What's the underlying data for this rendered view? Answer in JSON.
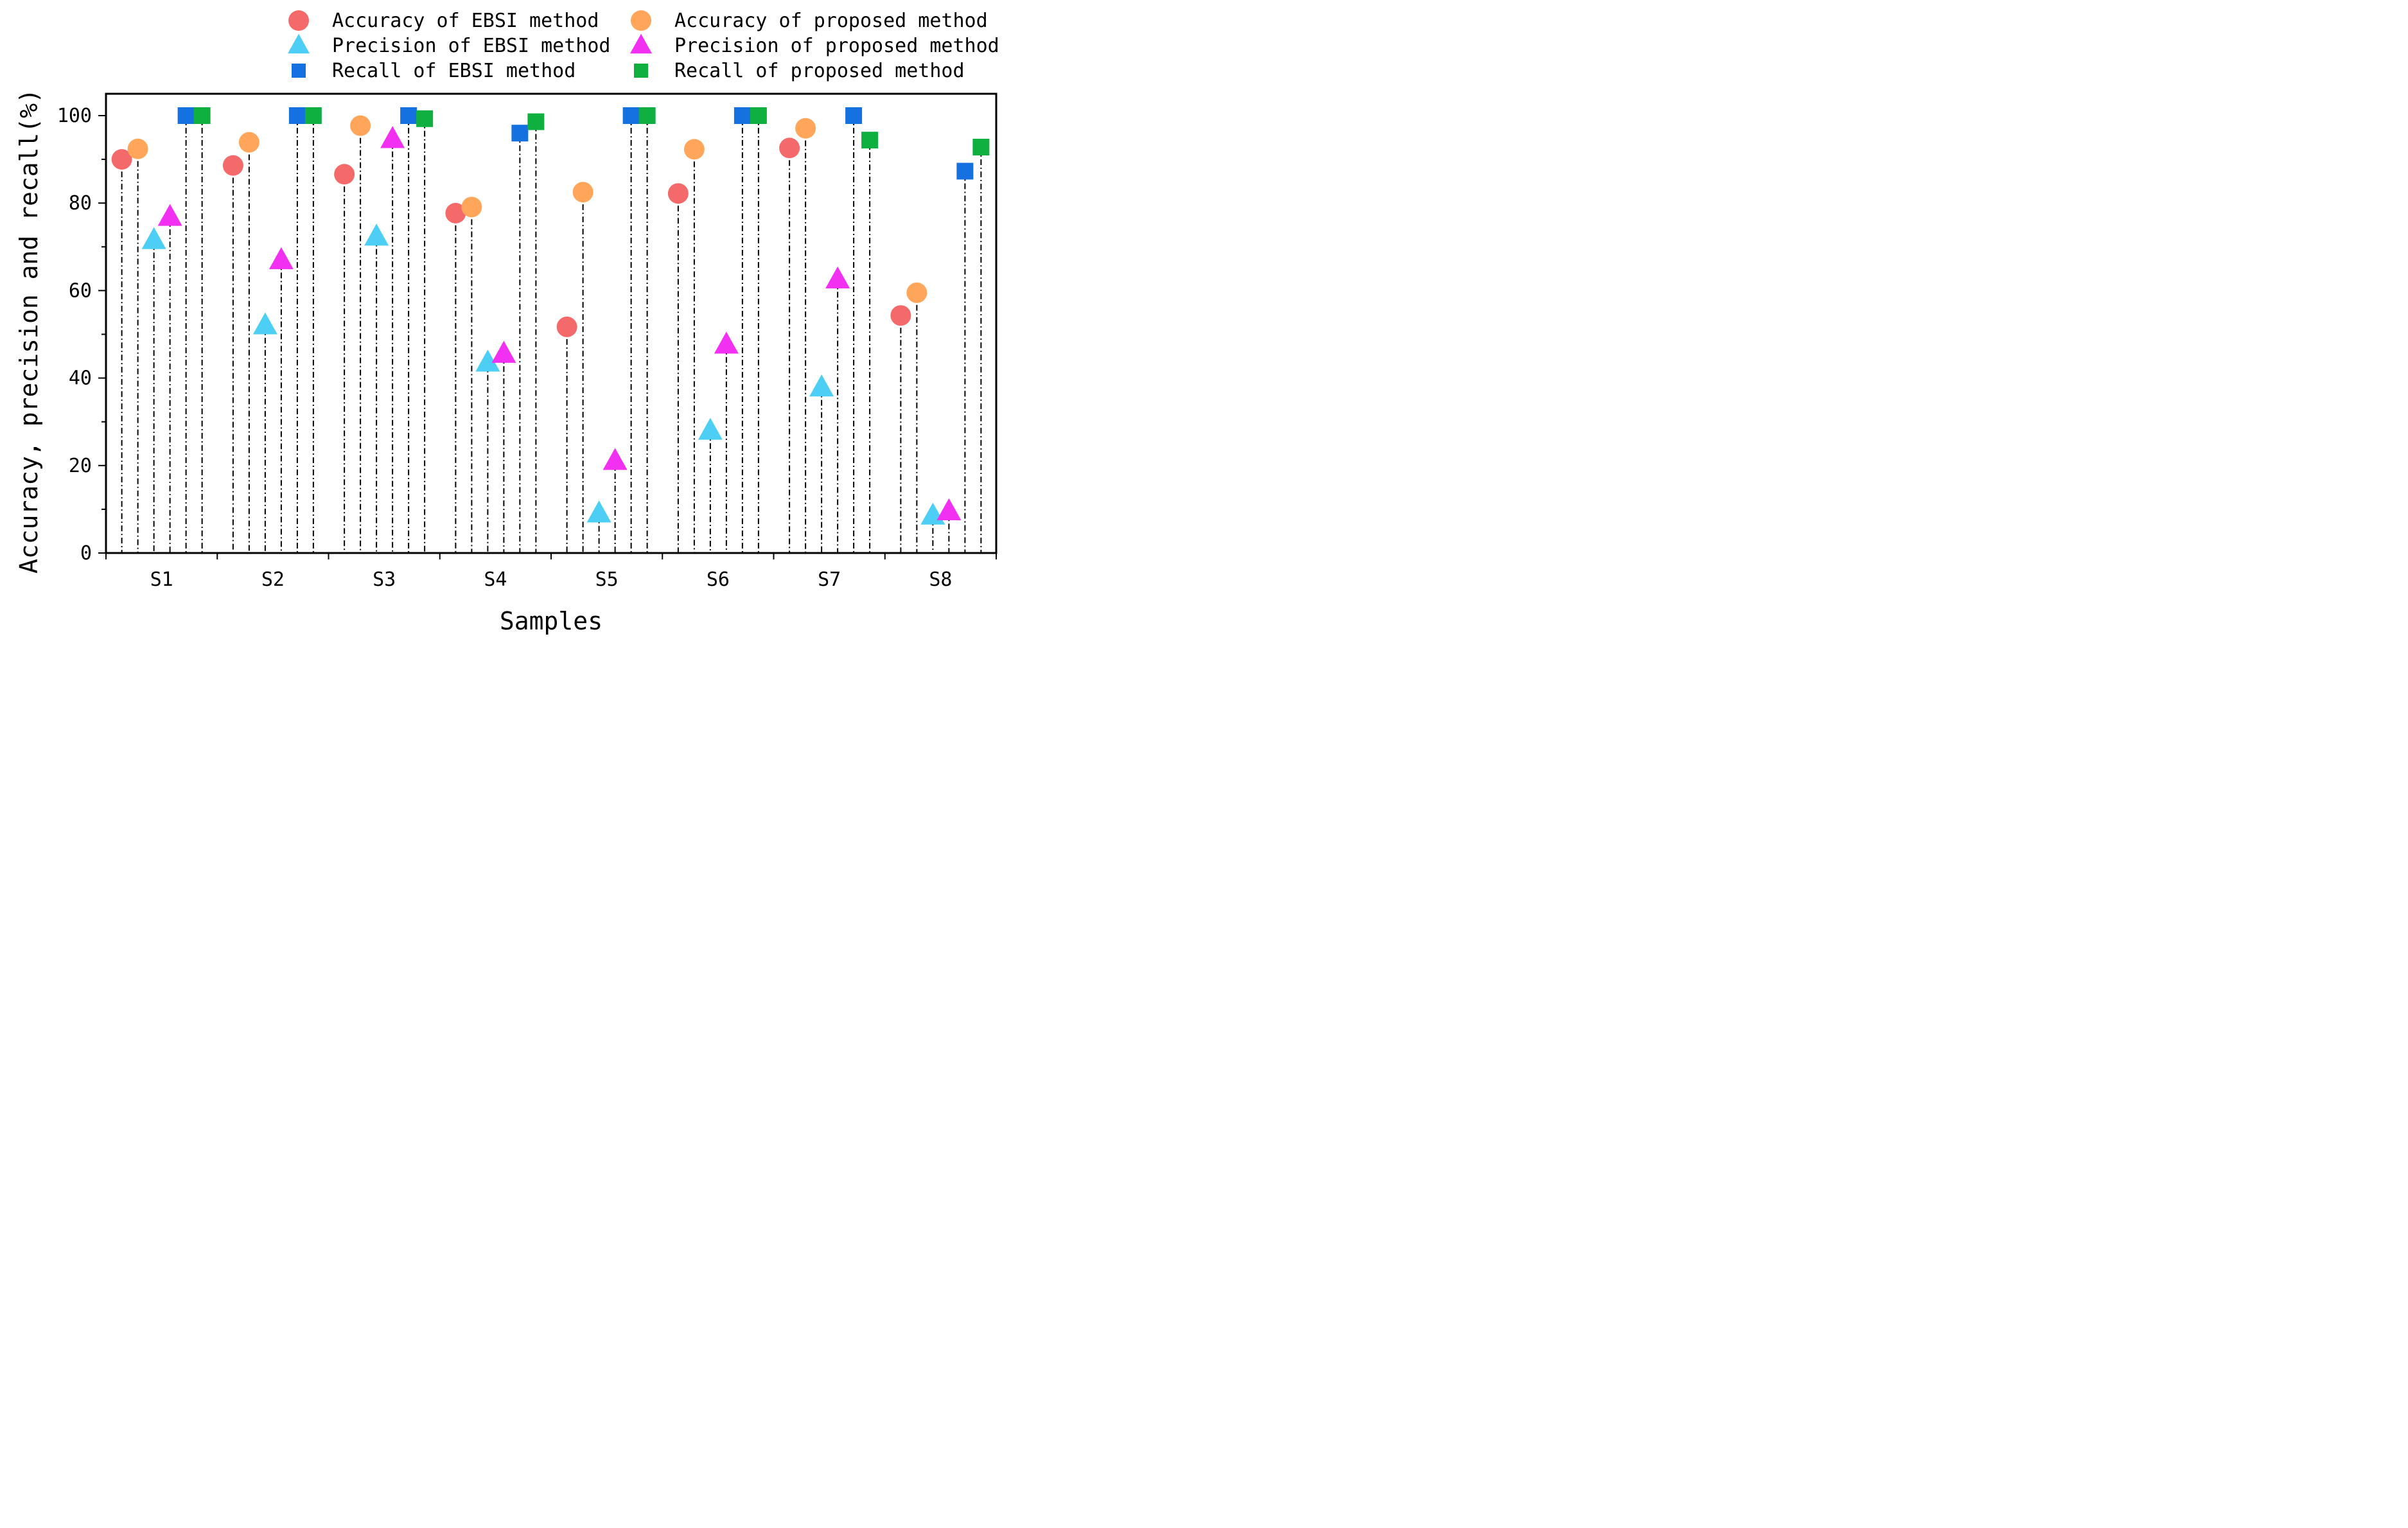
{
  "chart_data": {
    "type": "scatter",
    "title": "",
    "xlabel": "Samples",
    "ylabel": "Accuracy, precision and recall(%)",
    "categories": [
      "S1",
      "S2",
      "S3",
      "S4",
      "S5",
      "S6",
      "S7",
      "S8"
    ],
    "ylim": [
      0,
      105
    ],
    "yticks": [
      0,
      20,
      40,
      60,
      80,
      100
    ],
    "grid": false,
    "legend_position": "top",
    "drop_lines": "dash-dot vertical lines from each marker to the x-axis",
    "series": [
      {
        "name": "Accuracy of EBSI method",
        "marker": "circle",
        "color": "#F46A6A",
        "values": [
          90,
          88.6,
          86.6,
          77.7,
          51.7,
          82.2,
          92.6,
          54.3
        ]
      },
      {
        "name": "Precision of EBSI method",
        "marker": "triangle",
        "color": "#4DCFF5",
        "values": [
          71.5,
          52.0,
          72.3,
          43.5,
          9.0,
          27.9,
          37.8,
          8.5
        ]
      },
      {
        "name": "Recall of EBSI method",
        "marker": "square",
        "color": "#1571E0",
        "values": [
          100,
          100,
          100,
          96,
          100,
          100,
          100,
          87.3
        ]
      },
      {
        "name": "Accuracy of proposed method",
        "marker": "circle",
        "color": "#FFA65A",
        "values": [
          92.4,
          93.9,
          97.7,
          79.1,
          82.5,
          92.3,
          97.1,
          59.5
        ]
      },
      {
        "name": "Precision of proposed method",
        "marker": "triangle",
        "color": "#F230F2",
        "values": [
          76.8,
          66.9,
          94.6,
          45.5,
          21.0,
          47.6,
          62.5,
          9.5
        ]
      },
      {
        "name": "Recall of proposed method",
        "marker": "square",
        "color": "#10B040",
        "values": [
          100,
          100,
          99.3,
          98.6,
          100,
          100,
          94.4,
          92.8
        ]
      }
    ]
  }
}
